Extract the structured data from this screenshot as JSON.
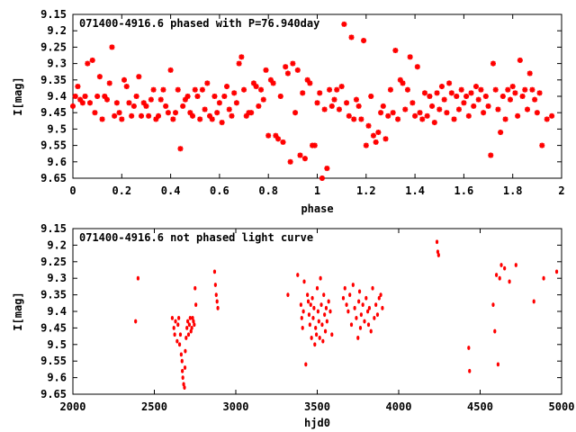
{
  "chart_data": [
    {
      "type": "scatter",
      "title": "071400-4916.6 phased with P=76.940day",
      "xlabel": "phase",
      "ylabel": "I[mag]",
      "xlim": [
        0,
        2
      ],
      "ylim": [
        9.15,
        9.65
      ],
      "y_inverted": true,
      "grid": false,
      "marker": "asterisk",
      "color": "#ff0000",
      "x_ticks": [
        "0",
        "0.2",
        "0.4",
        "0.6",
        "0.8",
        "1",
        "1.2",
        "1.4",
        "1.6",
        "1.8",
        "2"
      ],
      "y_ticks": [
        "9.15",
        "9.2",
        "9.25",
        "9.3",
        "9.35",
        "9.4",
        "9.45",
        "9.5",
        "9.55",
        "9.6",
        "9.65"
      ],
      "points": [
        [
          0.0,
          9.43
        ],
        [
          0.01,
          9.4
        ],
        [
          0.02,
          9.37
        ],
        [
          0.03,
          9.41
        ],
        [
          0.04,
          9.42
        ],
        [
          0.05,
          9.4
        ],
        [
          0.06,
          9.3
        ],
        [
          0.07,
          9.42
        ],
        [
          0.08,
          9.29
        ],
        [
          0.09,
          9.45
        ],
        [
          0.1,
          9.4
        ],
        [
          0.11,
          9.34
        ],
        [
          0.12,
          9.47
        ],
        [
          0.13,
          9.4
        ],
        [
          0.14,
          9.41
        ],
        [
          0.15,
          9.36
        ],
        [
          0.16,
          9.25
        ],
        [
          0.17,
          9.46
        ],
        [
          0.18,
          9.42
        ],
        [
          0.19,
          9.45
        ],
        [
          0.2,
          9.47
        ],
        [
          0.21,
          9.35
        ],
        [
          0.22,
          9.37
        ],
        [
          0.23,
          9.42
        ],
        [
          0.24,
          9.46
        ],
        [
          0.25,
          9.43
        ],
        [
          0.26,
          9.4
        ],
        [
          0.27,
          9.34
        ],
        [
          0.28,
          9.46
        ],
        [
          0.29,
          9.42
        ],
        [
          0.3,
          9.43
        ],
        [
          0.31,
          9.46
        ],
        [
          0.32,
          9.41
        ],
        [
          0.33,
          9.38
        ],
        [
          0.34,
          9.47
        ],
        [
          0.35,
          9.46
        ],
        [
          0.36,
          9.41
        ],
        [
          0.37,
          9.38
        ],
        [
          0.38,
          9.43
        ],
        [
          0.39,
          9.45
        ],
        [
          0.4,
          9.32
        ],
        [
          0.41,
          9.47
        ],
        [
          0.42,
          9.45
        ],
        [
          0.43,
          9.38
        ],
        [
          0.44,
          9.56
        ],
        [
          0.45,
          9.43
        ],
        [
          0.46,
          9.41
        ],
        [
          0.47,
          9.4
        ],
        [
          0.48,
          9.45
        ],
        [
          0.49,
          9.46
        ],
        [
          0.5,
          9.38
        ],
        [
          0.51,
          9.4
        ],
        [
          0.52,
          9.47
        ],
        [
          0.53,
          9.38
        ],
        [
          0.54,
          9.44
        ],
        [
          0.55,
          9.36
        ],
        [
          0.56,
          9.46
        ],
        [
          0.57,
          9.47
        ],
        [
          0.58,
          9.4
        ],
        [
          0.59,
          9.45
        ],
        [
          0.6,
          9.42
        ],
        [
          0.61,
          9.48
        ],
        [
          0.62,
          9.4
        ],
        [
          0.63,
          9.37
        ],
        [
          0.64,
          9.44
        ],
        [
          0.65,
          9.46
        ],
        [
          0.66,
          9.39
        ],
        [
          0.67,
          9.42
        ],
        [
          0.68,
          9.3
        ],
        [
          0.69,
          9.28
        ],
        [
          0.7,
          9.38
        ],
        [
          0.71,
          9.46
        ],
        [
          0.72,
          9.45
        ],
        [
          0.73,
          9.45
        ],
        [
          0.74,
          9.36
        ],
        [
          0.75,
          9.37
        ],
        [
          0.76,
          9.43
        ],
        [
          0.77,
          9.38
        ],
        [
          0.78,
          9.41
        ],
        [
          0.79,
          9.32
        ],
        [
          0.8,
          9.52
        ],
        [
          0.81,
          9.35
        ],
        [
          0.82,
          9.36
        ],
        [
          0.83,
          9.52
        ],
        [
          0.84,
          9.53
        ],
        [
          0.85,
          9.4
        ],
        [
          0.86,
          9.54
        ],
        [
          0.87,
          9.31
        ],
        [
          0.88,
          9.33
        ],
        [
          0.89,
          9.6
        ],
        [
          0.9,
          9.3
        ],
        [
          0.91,
          9.45
        ],
        [
          0.92,
          9.32
        ],
        [
          0.93,
          9.58
        ],
        [
          0.94,
          9.39
        ],
        [
          0.95,
          9.59
        ],
        [
          0.96,
          9.35
        ],
        [
          0.97,
          9.36
        ],
        [
          0.98,
          9.55
        ],
        [
          0.99,
          9.55
        ],
        [
          1.0,
          9.42
        ],
        [
          1.01,
          9.39
        ],
        [
          1.02,
          9.65
        ],
        [
          1.03,
          9.44
        ],
        [
          1.04,
          9.62
        ],
        [
          1.05,
          9.38
        ],
        [
          1.06,
          9.43
        ],
        [
          1.07,
          9.41
        ],
        [
          1.08,
          9.38
        ],
        [
          1.09,
          9.44
        ],
        [
          1.1,
          9.37
        ],
        [
          1.11,
          9.18
        ],
        [
          1.12,
          9.42
        ],
        [
          1.13,
          9.46
        ],
        [
          1.14,
          9.22
        ],
        [
          1.15,
          9.47
        ],
        [
          1.16,
          9.41
        ],
        [
          1.17,
          9.43
        ],
        [
          1.18,
          9.47
        ],
        [
          1.19,
          9.23
        ],
        [
          1.2,
          9.55
        ],
        [
          1.21,
          9.49
        ],
        [
          1.22,
          9.4
        ],
        [
          1.23,
          9.52
        ],
        [
          1.24,
          9.54
        ],
        [
          1.25,
          9.51
        ],
        [
          1.26,
          9.45
        ],
        [
          1.27,
          9.43
        ],
        [
          1.28,
          9.53
        ],
        [
          1.29,
          9.46
        ],
        [
          1.3,
          9.38
        ],
        [
          1.31,
          9.45
        ],
        [
          1.32,
          9.26
        ],
        [
          1.33,
          9.47
        ],
        [
          1.34,
          9.35
        ],
        [
          1.35,
          9.36
        ],
        [
          1.36,
          9.44
        ],
        [
          1.37,
          9.38
        ],
        [
          1.38,
          9.28
        ],
        [
          1.39,
          9.42
        ],
        [
          1.4,
          9.46
        ],
        [
          1.41,
          9.31
        ],
        [
          1.42,
          9.45
        ],
        [
          1.43,
          9.47
        ],
        [
          1.44,
          9.39
        ],
        [
          1.45,
          9.46
        ],
        [
          1.46,
          9.4
        ],
        [
          1.47,
          9.43
        ],
        [
          1.48,
          9.48
        ],
        [
          1.49,
          9.39
        ],
        [
          1.5,
          9.44
        ],
        [
          1.51,
          9.37
        ],
        [
          1.52,
          9.41
        ],
        [
          1.53,
          9.45
        ],
        [
          1.54,
          9.36
        ],
        [
          1.55,
          9.39
        ],
        [
          1.56,
          9.47
        ],
        [
          1.57,
          9.4
        ],
        [
          1.58,
          9.44
        ],
        [
          1.59,
          9.38
        ],
        [
          1.6,
          9.42
        ],
        [
          1.61,
          9.4
        ],
        [
          1.62,
          9.46
        ],
        [
          1.63,
          9.39
        ],
        [
          1.64,
          9.43
        ],
        [
          1.65,
          9.37
        ],
        [
          1.66,
          9.41
        ],
        [
          1.67,
          9.38
        ],
        [
          1.68,
          9.45
        ],
        [
          1.69,
          9.4
        ],
        [
          1.7,
          9.43
        ],
        [
          1.71,
          9.58
        ],
        [
          1.72,
          9.3
        ],
        [
          1.73,
          9.38
        ],
        [
          1.74,
          9.44
        ],
        [
          1.75,
          9.51
        ],
        [
          1.76,
          9.4
        ],
        [
          1.77,
          9.47
        ],
        [
          1.78,
          9.38
        ],
        [
          1.79,
          9.41
        ],
        [
          1.8,
          9.37
        ],
        [
          1.81,
          9.39
        ],
        [
          1.82,
          9.46
        ],
        [
          1.83,
          9.29
        ],
        [
          1.84,
          9.4
        ],
        [
          1.85,
          9.38
        ],
        [
          1.86,
          9.44
        ],
        [
          1.87,
          9.33
        ],
        [
          1.88,
          9.38
        ],
        [
          1.89,
          9.41
        ],
        [
          1.9,
          9.45
        ],
        [
          1.91,
          9.39
        ],
        [
          1.92,
          9.55
        ],
        [
          1.94,
          9.47
        ],
        [
          1.96,
          9.46
        ]
      ]
    },
    {
      "type": "scatter",
      "title": "071400-4916.6 not phased light curve",
      "xlabel": "hjd0",
      "ylabel": "I[mag]",
      "xlim": [
        2000,
        5000
      ],
      "ylim": [
        9.15,
        9.65
      ],
      "y_inverted": true,
      "grid": false,
      "marker": "dot",
      "color": "#ff0000",
      "x_ticks": [
        "2000",
        "2500",
        "3000",
        "3500",
        "4000",
        "4500",
        "5000"
      ],
      "y_ticks": [
        "9.15",
        "9.2",
        "9.25",
        "9.3",
        "9.35",
        "9.4",
        "9.45",
        "9.5",
        "9.55",
        "9.6",
        "9.65"
      ],
      "points": [
        [
          2385,
          9.43
        ],
        [
          2400,
          9.3
        ],
        [
          2610,
          9.42
        ],
        [
          2620,
          9.45
        ],
        [
          2625,
          9.47
        ],
        [
          2630,
          9.43
        ],
        [
          2640,
          9.49
        ],
        [
          2645,
          9.44
        ],
        [
          2650,
          9.42
        ],
        [
          2655,
          9.5
        ],
        [
          2660,
          9.47
        ],
        [
          2665,
          9.53
        ],
        [
          2670,
          9.55
        ],
        [
          2672,
          9.58
        ],
        [
          2675,
          9.6
        ],
        [
          2680,
          9.62
        ],
        [
          2685,
          9.63
        ],
        [
          2688,
          9.57
        ],
        [
          2690,
          9.52
        ],
        [
          2695,
          9.48
        ],
        [
          2700,
          9.45
        ],
        [
          2705,
          9.43
        ],
        [
          2710,
          9.47
        ],
        [
          2715,
          9.44
        ],
        [
          2720,
          9.42
        ],
        [
          2725,
          9.46
        ],
        [
          2730,
          9.45
        ],
        [
          2735,
          9.42
        ],
        [
          2740,
          9.43
        ],
        [
          2745,
          9.44
        ],
        [
          2750,
          9.33
        ],
        [
          2755,
          9.38
        ],
        [
          2870,
          9.28
        ],
        [
          2875,
          9.32
        ],
        [
          2880,
          9.35
        ],
        [
          2885,
          9.37
        ],
        [
          2890,
          9.39
        ],
        [
          3320,
          9.35
        ],
        [
          3380,
          9.29
        ],
        [
          3400,
          9.38
        ],
        [
          3405,
          9.42
        ],
        [
          3410,
          9.45
        ],
        [
          3415,
          9.4
        ],
        [
          3420,
          9.31
        ],
        [
          3430,
          9.56
        ],
        [
          3440,
          9.35
        ],
        [
          3445,
          9.37
        ],
        [
          3450,
          9.41
        ],
        [
          3455,
          9.44
        ],
        [
          3460,
          9.38
        ],
        [
          3465,
          9.48
        ],
        [
          3470,
          9.36
        ],
        [
          3475,
          9.42
        ],
        [
          3480,
          9.39
        ],
        [
          3485,
          9.5
        ],
        [
          3490,
          9.45
        ],
        [
          3495,
          9.47
        ],
        [
          3500,
          9.33
        ],
        [
          3505,
          9.4
        ],
        [
          3510,
          9.43
        ],
        [
          3515,
          9.48
        ],
        [
          3520,
          9.3
        ],
        [
          3525,
          9.38
        ],
        [
          3530,
          9.44
        ],
        [
          3535,
          9.49
        ],
        [
          3540,
          9.35
        ],
        [
          3545,
          9.41
        ],
        [
          3550,
          9.46
        ],
        [
          3555,
          9.39
        ],
        [
          3560,
          9.43
        ],
        [
          3570,
          9.37
        ],
        [
          3580,
          9.4
        ],
        [
          3590,
          9.47
        ],
        [
          3660,
          9.36
        ],
        [
          3670,
          9.33
        ],
        [
          3680,
          9.38
        ],
        [
          3690,
          9.4
        ],
        [
          3700,
          9.35
        ],
        [
          3710,
          9.44
        ],
        [
          3720,
          9.32
        ],
        [
          3730,
          9.39
        ],
        [
          3740,
          9.42
        ],
        [
          3750,
          9.48
        ],
        [
          3755,
          9.37
        ],
        [
          3760,
          9.34
        ],
        [
          3765,
          9.45
        ],
        [
          3770,
          9.41
        ],
        [
          3780,
          9.38
        ],
        [
          3790,
          9.43
        ],
        [
          3800,
          9.36
        ],
        [
          3810,
          9.4
        ],
        [
          3815,
          9.44
        ],
        [
          3820,
          9.39
        ],
        [
          3830,
          9.46
        ],
        [
          3840,
          9.33
        ],
        [
          3850,
          9.42
        ],
        [
          3860,
          9.38
        ],
        [
          3870,
          9.41
        ],
        [
          3880,
          9.36
        ],
        [
          3890,
          9.35
        ],
        [
          3900,
          9.39
        ],
        [
          4235,
          9.19
        ],
        [
          4240,
          9.22
        ],
        [
          4245,
          9.23
        ],
        [
          4430,
          9.51
        ],
        [
          4435,
          9.58
        ],
        [
          4580,
          9.38
        ],
        [
          4590,
          9.46
        ],
        [
          4600,
          9.29
        ],
        [
          4610,
          9.56
        ],
        [
          4620,
          9.3
        ],
        [
          4630,
          9.26
        ],
        [
          4650,
          9.27
        ],
        [
          4680,
          9.31
        ],
        [
          4720,
          9.26
        ],
        [
          4830,
          9.37
        ],
        [
          4890,
          9.3
        ],
        [
          4970,
          9.28
        ]
      ]
    }
  ]
}
